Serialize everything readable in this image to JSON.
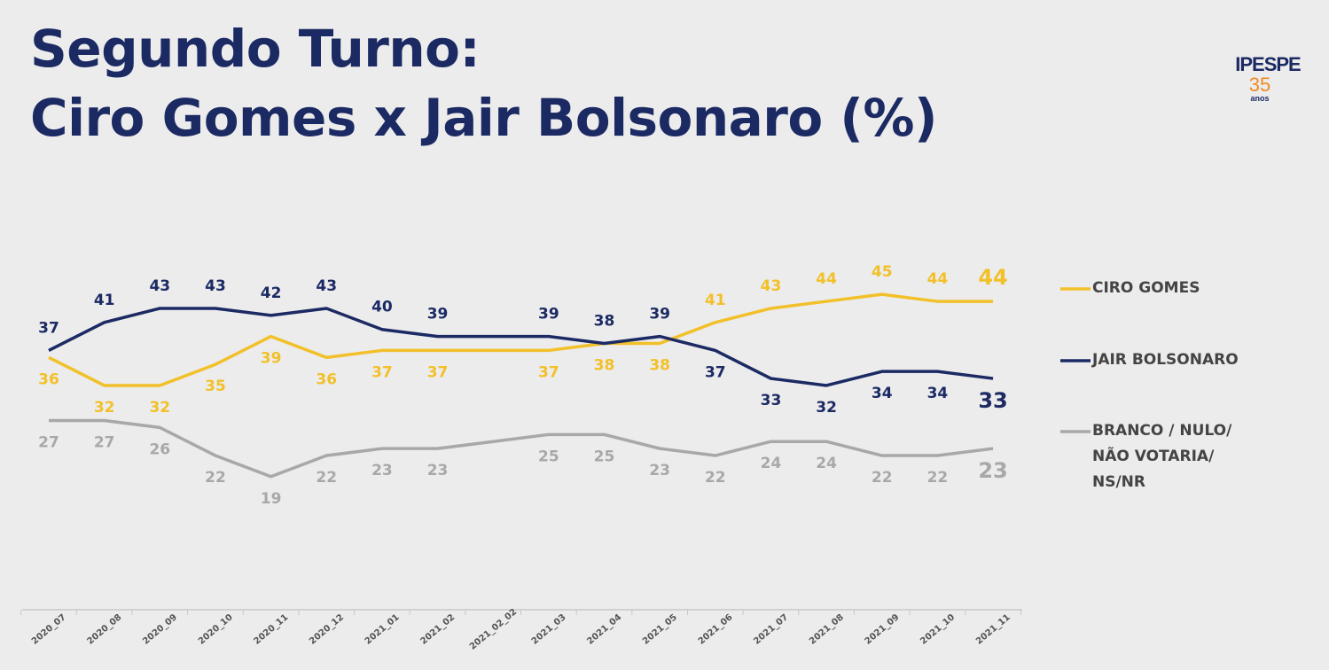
{
  "logo": {
    "name": "IPESPE",
    "years": "35",
    "caption": "anos"
  },
  "chart_data": {
    "type": "line",
    "title": "Segundo Turno:\nCiro Gomes x Jair Bolsonaro (%)",
    "categories": [
      "2020_07",
      "2020_08",
      "2020_09",
      "2020_10",
      "2020_11",
      "2020_12",
      "2021_01",
      "2021_02",
      "2021_02_02",
      "2021_03",
      "2021_04",
      "2021_05",
      "2021_06",
      "2021_07",
      "2021_08",
      "2021_09",
      "2021_10",
      "2021_11"
    ],
    "ylim": [
      0,
      54
    ],
    "legend": "right",
    "series": [
      {
        "name": "CIRO GOMES",
        "color": "#f2c029",
        "values": [
          36,
          32,
          32,
          35,
          39,
          36,
          37,
          37,
          37,
          37,
          38,
          38,
          41,
          43,
          44,
          45,
          44,
          44
        ],
        "value_labels": [
          "36",
          "32",
          "32",
          "35",
          "39",
          "36",
          "37",
          "37",
          null,
          "37",
          "38",
          "38",
          "41",
          "43",
          "44",
          "45",
          "44",
          "44"
        ]
      },
      {
        "name": "JAIR BOLSONARO",
        "color": "#1c2a64",
        "values": [
          37,
          41,
          43,
          43,
          42,
          43,
          40,
          39,
          39,
          39,
          38,
          39,
          37,
          33,
          32,
          34,
          34,
          33
        ],
        "value_labels": [
          "37",
          "41",
          "43",
          "43",
          "42",
          "43",
          "40",
          "39",
          null,
          "39",
          "38",
          "39",
          "37",
          "33",
          "32",
          "34",
          "34",
          "33"
        ]
      },
      {
        "name": "BRANCO / NULO/ NÃO VOTARIA/ NS/NR",
        "color": "#a8a8a8",
        "values": [
          27,
          27,
          26,
          22,
          19,
          22,
          23,
          23,
          24,
          25,
          25,
          23,
          22,
          24,
          24,
          22,
          22,
          23
        ],
        "value_labels": [
          "27",
          "27",
          "26",
          "22",
          "19",
          "22",
          "23",
          "23",
          null,
          "25",
          "25",
          "23",
          "22",
          "24",
          "24",
          "22",
          "22",
          "23"
        ]
      }
    ]
  }
}
